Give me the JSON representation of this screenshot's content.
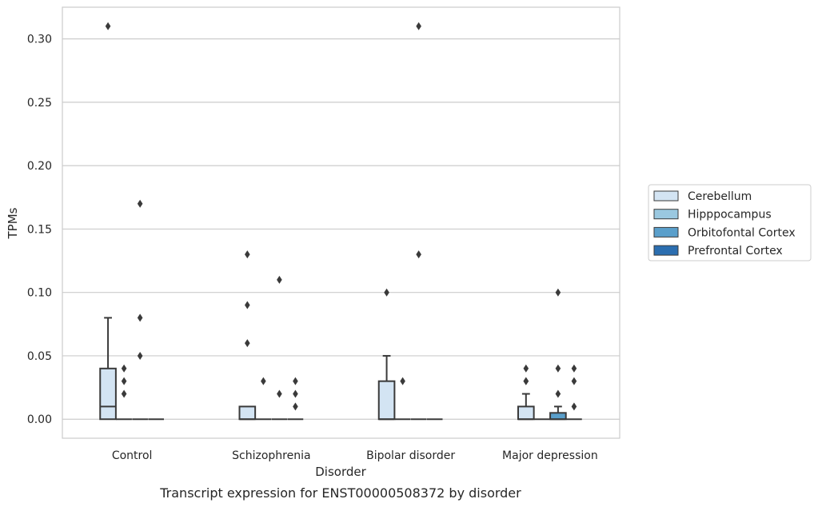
{
  "caption": "Transcript expression for ENST00000508372 by disorder",
  "chart_data": {
    "type": "box",
    "xlabel": "Disorder",
    "ylabel": "TPMs",
    "categories": [
      "Control",
      "Schizophrenia",
      "Bipolar disorder",
      "Major depression"
    ],
    "ylim": [
      -0.015,
      0.325
    ],
    "yticks": [
      0.0,
      0.05,
      0.1,
      0.15,
      0.2,
      0.25,
      0.3
    ],
    "ytick_labels": [
      "0.00",
      "0.05",
      "0.10",
      "0.15",
      "0.20",
      "0.25",
      "0.30"
    ],
    "grid": "horizontal",
    "legend": "right",
    "series": [
      {
        "name": "Cerebellum",
        "color": "#d3e4f3",
        "boxes": [
          {
            "q1": 0.0,
            "median": 0.01,
            "q3": 0.04,
            "whisker_low": 0.0,
            "whisker_high": 0.08,
            "outliers": [
              0.31
            ]
          },
          {
            "q1": 0.0,
            "median": 0.0,
            "q3": 0.01,
            "whisker_low": 0.0,
            "whisker_high": 0.01,
            "outliers": [
              0.13,
              0.09,
              0.06
            ]
          },
          {
            "q1": 0.0,
            "median": 0.0,
            "q3": 0.03,
            "whisker_low": 0.0,
            "whisker_high": 0.05,
            "outliers": [
              0.1
            ]
          },
          {
            "q1": 0.0,
            "median": 0.0,
            "q3": 0.01,
            "whisker_low": 0.0,
            "whisker_high": 0.02,
            "outliers": [
              0.04,
              0.03,
              0.03
            ]
          }
        ]
      },
      {
        "name": "Hipppocampus",
        "color": "#9ac8e0",
        "boxes": [
          {
            "q1": 0.0,
            "median": 0.0,
            "q3": 0.0,
            "whisker_low": 0.0,
            "whisker_high": 0.0,
            "outliers": [
              0.04,
              0.03,
              0.02
            ]
          },
          {
            "q1": 0.0,
            "median": 0.0,
            "q3": 0.0,
            "whisker_low": 0.0,
            "whisker_high": 0.0,
            "outliers": [
              0.03
            ]
          },
          {
            "q1": 0.0,
            "median": 0.0,
            "q3": 0.0,
            "whisker_low": 0.0,
            "whisker_high": 0.0,
            "outliers": [
              0.03
            ]
          },
          {
            "q1": 0.0,
            "median": 0.0,
            "q3": 0.0,
            "whisker_low": 0.0,
            "whisker_high": 0.0,
            "outliers": []
          }
        ]
      },
      {
        "name": "Orbitofontal Cortex",
        "color": "#5a9fcb",
        "boxes": [
          {
            "q1": 0.0,
            "median": 0.0,
            "q3": 0.0,
            "whisker_low": 0.0,
            "whisker_high": 0.0,
            "outliers": [
              0.17,
              0.08,
              0.05
            ]
          },
          {
            "q1": 0.0,
            "median": 0.0,
            "q3": 0.0,
            "whisker_low": 0.0,
            "whisker_high": 0.0,
            "outliers": [
              0.11,
              0.02
            ]
          },
          {
            "q1": 0.0,
            "median": 0.0,
            "q3": 0.0,
            "whisker_low": 0.0,
            "whisker_high": 0.0,
            "outliers": [
              0.31,
              0.13
            ]
          },
          {
            "q1": 0.0,
            "median": 0.0,
            "q3": 0.005,
            "whisker_low": 0.0,
            "whisker_high": 0.01,
            "outliers": [
              0.1,
              0.04,
              0.02
            ]
          }
        ]
      },
      {
        "name": "Prefrontal Cortex",
        "color": "#2b6eb0",
        "boxes": [
          {
            "q1": 0.0,
            "median": 0.0,
            "q3": 0.0,
            "whisker_low": 0.0,
            "whisker_high": 0.0,
            "outliers": []
          },
          {
            "q1": 0.0,
            "median": 0.0,
            "q3": 0.0,
            "whisker_low": 0.0,
            "whisker_high": 0.0,
            "outliers": [
              0.03,
              0.02,
              0.01
            ]
          },
          {
            "q1": 0.0,
            "median": 0.0,
            "q3": 0.0,
            "whisker_low": 0.0,
            "whisker_high": 0.0,
            "outliers": []
          },
          {
            "q1": 0.0,
            "median": 0.0,
            "q3": 0.0,
            "whisker_low": 0.0,
            "whisker_high": 0.0,
            "outliers": [
              0.04,
              0.03,
              0.01
            ]
          }
        ]
      }
    ]
  }
}
